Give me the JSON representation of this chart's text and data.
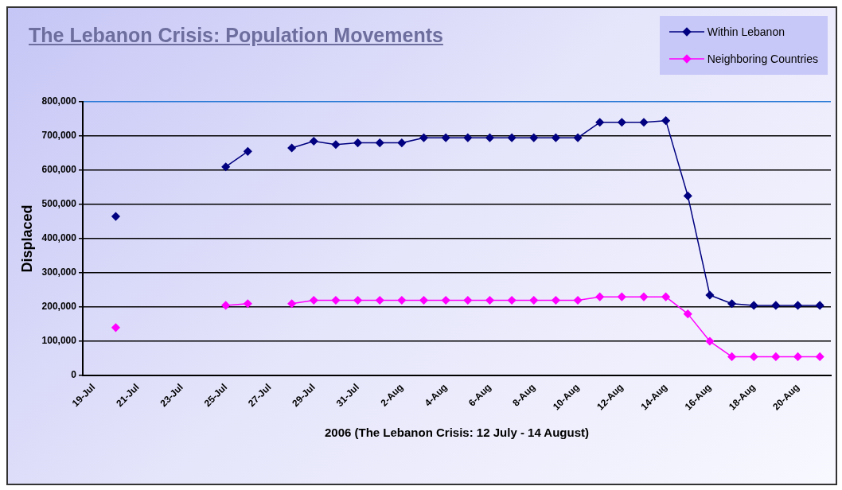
{
  "chart_data": {
    "type": "line",
    "title": "The Lebanon Crisis: Population Movements",
    "xlabel": "2006 (The Lebanon Crisis: 12 July - 14 August)",
    "ylabel": "Displaced",
    "categories": [
      "19-Jul",
      null,
      "21-Jul",
      null,
      "23-Jul",
      null,
      "25-Jul",
      null,
      "27-Jul",
      null,
      "29-Jul",
      null,
      "31-Jul",
      null,
      "2-Aug",
      null,
      "4-Aug",
      null,
      "6-Aug",
      null,
      "8-Aug",
      null,
      "10-Aug",
      null,
      "12-Aug",
      null,
      "14-Aug",
      null,
      "16-Aug",
      null,
      "18-Aug",
      null,
      "20-Aug",
      null
    ],
    "series": [
      {
        "name": "Within Lebanon",
        "color": "#000080",
        "values": [
          null,
          465000,
          null,
          null,
          null,
          null,
          610000,
          655000,
          null,
          665000,
          685000,
          675000,
          680000,
          680000,
          680000,
          695000,
          695000,
          695000,
          695000,
          695000,
          695000,
          695000,
          695000,
          740000,
          740000,
          740000,
          745000,
          525000,
          235000,
          210000,
          205000,
          205000,
          205000,
          205000
        ]
      },
      {
        "name": "Neighboring Countries",
        "color": "#ff00ff",
        "values": [
          null,
          140000,
          null,
          null,
          null,
          null,
          205000,
          210000,
          null,
          210000,
          220000,
          220000,
          220000,
          220000,
          220000,
          220000,
          220000,
          220000,
          220000,
          220000,
          220000,
          220000,
          220000,
          230000,
          230000,
          230000,
          230000,
          180000,
          100000,
          55000,
          55000,
          55000,
          55000,
          55000
        ]
      }
    ],
    "ylim": [
      0,
      800000
    ],
    "yticks": [
      0,
      {
        "value": 100000,
        "label": "100,000"
      },
      {
        "value": 200000,
        "label": "200,000"
      },
      {
        "value": 300000,
        "label": "300,000"
      },
      {
        "value": 400000,
        "label": "400,000"
      },
      {
        "value": 500000,
        "label": "500,000"
      },
      {
        "value": 600000,
        "label": "600,000"
      },
      {
        "value": 700000,
        "label": "700,000"
      },
      {
        "value": 800000,
        "label": "800,000"
      }
    ],
    "grid": "y",
    "legend": "top right",
    "marker": "diamond",
    "line_style": "solid"
  }
}
